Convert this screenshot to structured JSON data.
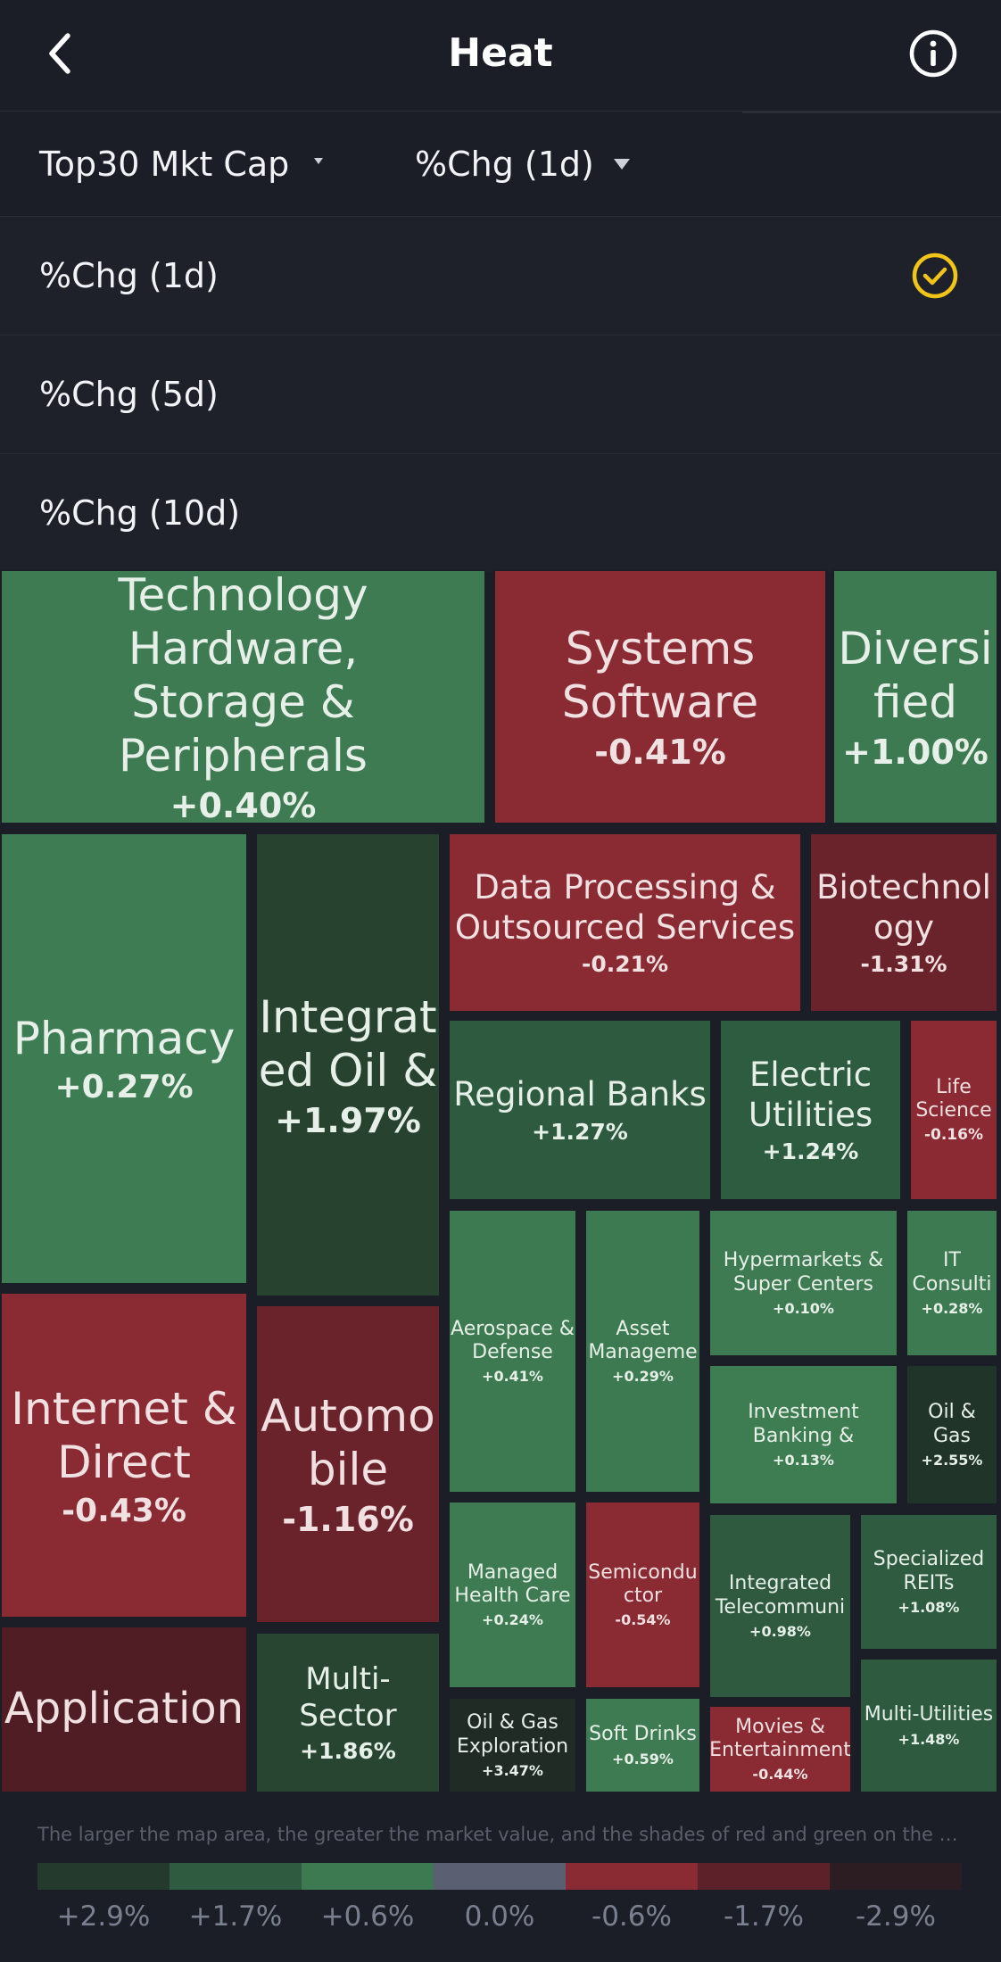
{
  "header": {
    "title": "Heat"
  },
  "filters": {
    "market": "Top30 Mkt Cap",
    "metric": "%Chg (1d)"
  },
  "dropdown": {
    "options": [
      "%Chg (1d)",
      "%Chg (5d)",
      "%Chg (10d)"
    ],
    "selected_index": 0,
    "check_color": "#f0c419"
  },
  "heatmap": {
    "tiles": [
      {
        "name": "Technology Hardware, Storage & Peripherals",
        "line1": "Technology Hardware,",
        "line2": "Storage & Peripherals",
        "change": "+0.40%"
      },
      {
        "name": "Systems Software",
        "line1": "Systems",
        "line2": "Software",
        "change": "-0.41%"
      },
      {
        "name": "Diversified",
        "line1": "Diversi",
        "line2": "fied",
        "change": "+1.00%"
      },
      {
        "name": "Pharmacy",
        "line1": "Pharmacy",
        "line2": "",
        "change": "+0.27%"
      },
      {
        "name": "Integrated Oil &",
        "line1": "Integrat",
        "line2": "ed Oil &",
        "change": "+1.97%"
      },
      {
        "name": "Data Processing & Outsourced Services",
        "line1": "Data Processing &",
        "line2": "Outsourced Services",
        "change": "-0.21%"
      },
      {
        "name": "Biotechnology",
        "line1": "Biotechnol",
        "line2": "ogy",
        "change": "-1.31%"
      },
      {
        "name": "Regional Banks",
        "line1": "Regional Banks",
        "line2": "",
        "change": "+1.27%"
      },
      {
        "name": "Electric Utilities",
        "line1": "Electric",
        "line2": "Utilities",
        "change": "+1.24%"
      },
      {
        "name": "Life Science",
        "line1": "Life",
        "line2": "Science",
        "change": "-0.16%"
      },
      {
        "name": "Internet & Direct",
        "line1": "Internet &",
        "line2": "Direct",
        "change": "-0.43%"
      },
      {
        "name": "Automobile",
        "line1": "Automo",
        "line2": "bile",
        "change": "-1.16%"
      },
      {
        "name": "Aerospace & Defense",
        "line1": "Aerospace &",
        "line2": "Defense",
        "change": "+0.41%"
      },
      {
        "name": "Asset Management",
        "line1": "Asset",
        "line2": "Manageme",
        "change": "+0.29%"
      },
      {
        "name": "Hypermarkets & Super Centers",
        "line1": "Hypermarkets &",
        "line2": "Super Centers",
        "change": "+0.10%"
      },
      {
        "name": "IT Consulting",
        "line1": "IT",
        "line2": "Consulti",
        "change": "+0.28%"
      },
      {
        "name": "Investment Banking &",
        "line1": "Investment",
        "line2": "Banking &",
        "change": "+0.13%"
      },
      {
        "name": "Oil & Gas",
        "line1": "Oil &",
        "line2": "Gas",
        "change": "+2.55%"
      },
      {
        "name": "Managed Health Care",
        "line1": "Managed",
        "line2": "Health Care",
        "change": "+0.24%"
      },
      {
        "name": "Semiconductor",
        "line1": "Semicondu",
        "line2": "ctor",
        "change": "-0.54%"
      },
      {
        "name": "Integrated Telecommunication",
        "line1": "Integrated",
        "line2": "Telecommuni",
        "change": "+0.98%"
      },
      {
        "name": "Specialized REITs",
        "line1": "Specialized",
        "line2": "REITs",
        "change": "+1.08%"
      },
      {
        "name": "Application",
        "line1": "Application",
        "line2": "",
        "change": ""
      },
      {
        "name": "Multi-Sector",
        "line1": "Multi-",
        "line2": "Sector",
        "change": "+1.86%"
      },
      {
        "name": "Oil & Gas Exploration",
        "line1": "Oil & Gas",
        "line2": "Exploration",
        "change": "+3.47%"
      },
      {
        "name": "Soft Drinks",
        "line1": "Soft Drinks",
        "line2": "",
        "change": "+0.59%"
      },
      {
        "name": "Movies & Entertainment",
        "line1": "Movies &",
        "line2": "Entertainment",
        "change": "-0.44%"
      },
      {
        "name": "Multi-Utilities",
        "line1": "Multi-Utilities",
        "line2": "",
        "change": "+1.48%"
      }
    ]
  },
  "footer": {
    "note": "The larger the map area, the greater the market value, and the shades of red and green on the map repre...",
    "legend": [
      {
        "label": "+2.9%",
        "color": "#233a2d"
      },
      {
        "label": "+1.7%",
        "color": "#2f5b40"
      },
      {
        "label": "+0.6%",
        "color": "#3d7a51"
      },
      {
        "label": "0.0%",
        "color": "#5b5f72"
      },
      {
        "label": "-0.6%",
        "color": "#8a2a33"
      },
      {
        "label": "-1.7%",
        "color": "#5c2129"
      },
      {
        "label": "-2.9%",
        "color": "#2c1d22"
      }
    ]
  }
}
